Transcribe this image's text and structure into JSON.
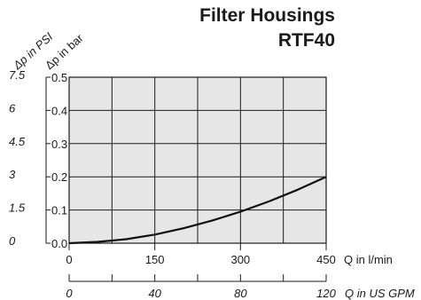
{
  "title_line1": "Filter Housings",
  "title_line2": "RTF40",
  "chart_data": {
    "type": "line",
    "title": "Filter Housings RTF40",
    "y_bar": {
      "label": "Δp in bar",
      "ylim": [
        0,
        0.5
      ],
      "ticks": [
        "0.0",
        "0.1",
        "0.2",
        "0.3",
        "0.4",
        "0.5"
      ]
    },
    "y_psi": {
      "label": "Δp in PSI",
      "ylim": [
        0,
        7.5
      ],
      "ticks": [
        "0",
        "1.5",
        "3",
        "4.5",
        "6",
        "7.5"
      ]
    },
    "x_lmin": {
      "label": "Q in l/min",
      "xlim": [
        0,
        450
      ],
      "ticks": [
        "0",
        "150",
        "300",
        "450"
      ]
    },
    "x_gpm": {
      "label": "Q in US GPM",
      "xlim": [
        0,
        120
      ],
      "ticks": [
        "0",
        "40",
        "80",
        "120"
      ]
    },
    "grid": true,
    "series": [
      {
        "x": [
          0,
          50,
          100,
          150,
          200,
          250,
          300,
          350,
          400,
          450
        ],
        "y": [
          0.0,
          0.004,
          0.012,
          0.026,
          0.045,
          0.068,
          0.095,
          0.126,
          0.161,
          0.2
        ]
      }
    ],
    "colors": {
      "background": "#e6e6e6",
      "grid": "#1a1a1a",
      "line": "#111111"
    }
  }
}
